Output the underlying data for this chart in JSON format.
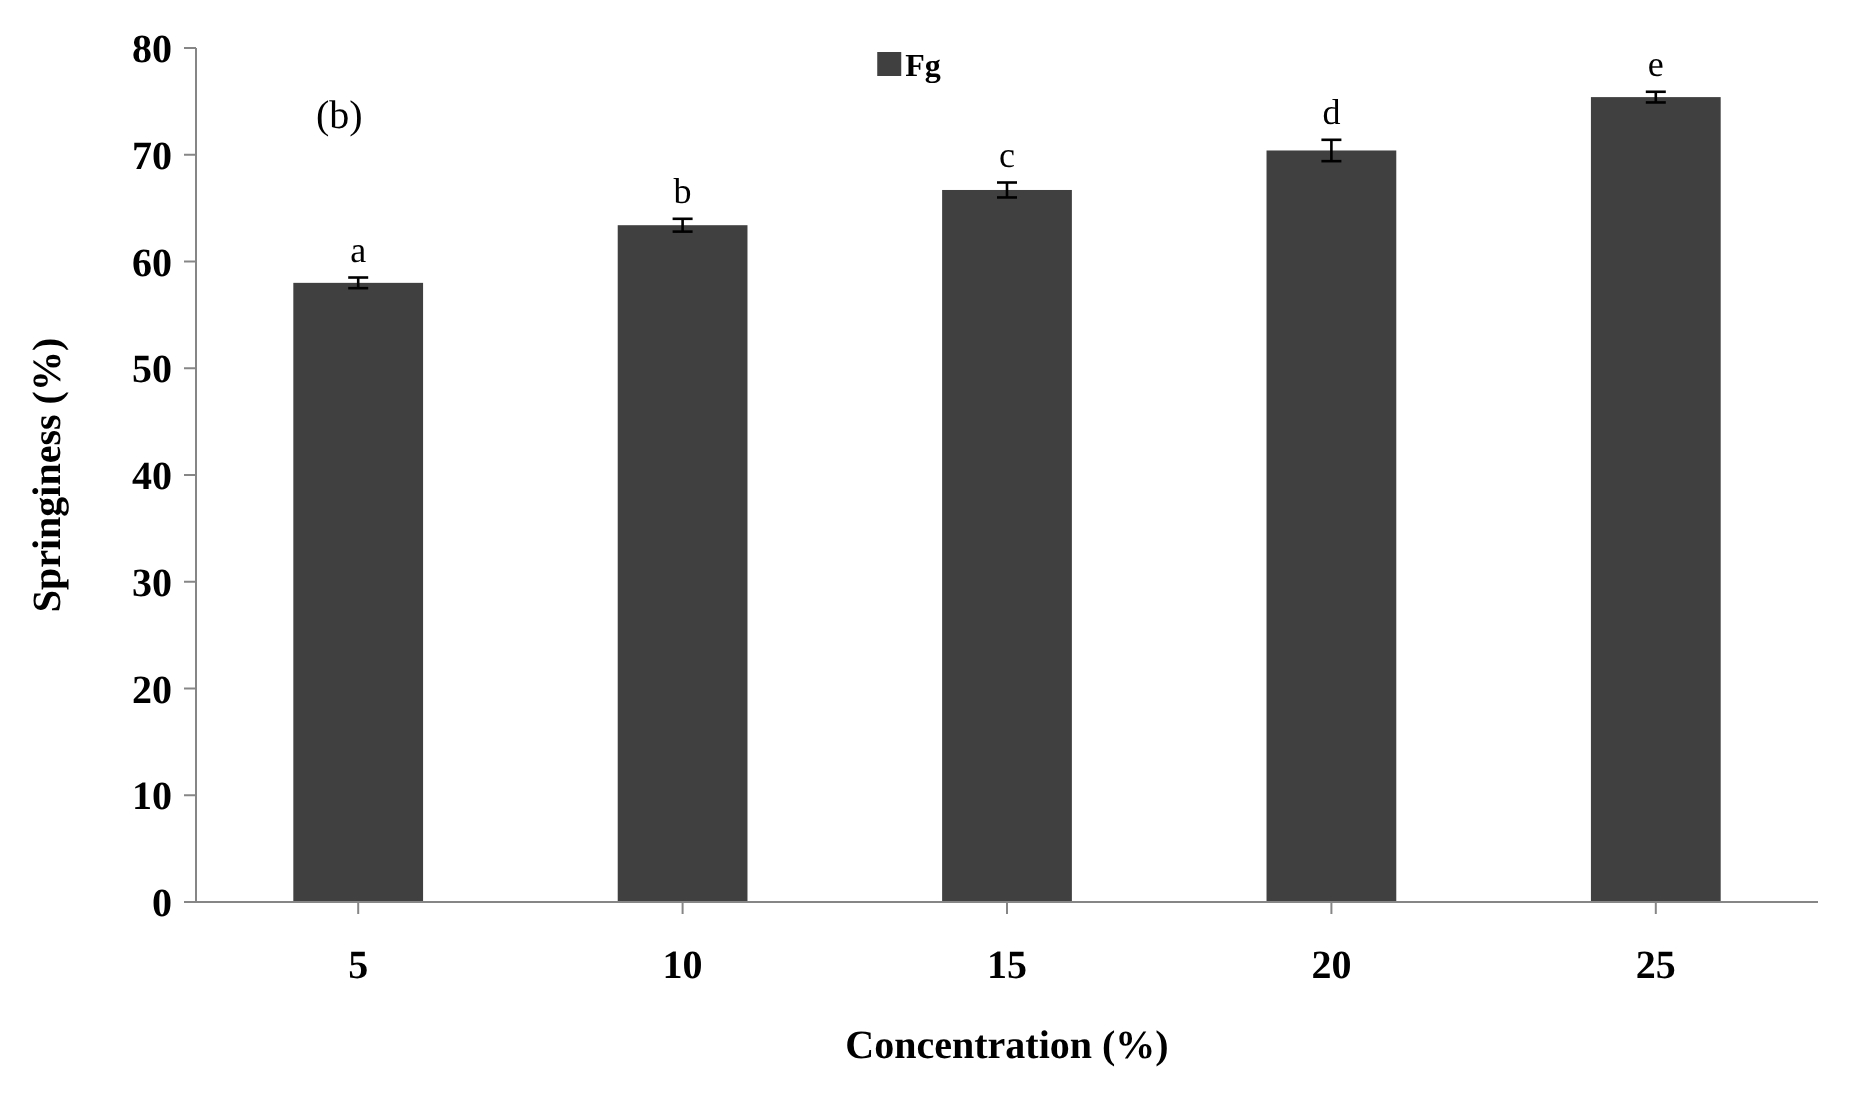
{
  "chart_data": {
    "type": "bar",
    "xlabel": "Concentration (%)",
    "ylabel": "Springiness (%)",
    "categories": [
      "5",
      "10",
      "15",
      "20",
      "25"
    ],
    "series": [
      {
        "name": "Fg",
        "color": "#404040",
        "values": [
          58.0,
          63.4,
          66.7,
          70.4,
          75.4
        ],
        "errors": [
          0.5,
          0.6,
          0.7,
          1.0,
          0.5
        ]
      }
    ],
    "ylim": [
      0,
      80
    ],
    "yticks": [
      0,
      10,
      20,
      30,
      40,
      50,
      60,
      70,
      80
    ],
    "grid": false,
    "legend": "top",
    "annotations": [
      "(b)",
      {
        "text": "a",
        "x": "5",
        "y": 58.5
      },
      {
        "text": "b",
        "x": "10",
        "y": 64.0
      },
      {
        "text": "c",
        "x": "15",
        "y": 67.4
      },
      {
        "text": "d",
        "x": "20",
        "y": 71.4
      },
      {
        "text": "e",
        "x": "25",
        "y": 75.9
      }
    ]
  }
}
